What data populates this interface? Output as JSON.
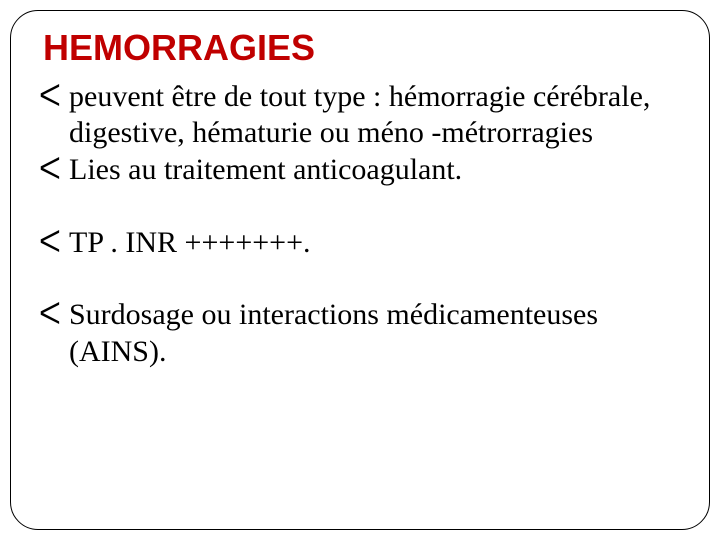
{
  "slide": {
    "title": "HEMORRAGIES",
    "title_color": "#c00000",
    "title_font": "Arial",
    "title_fontsize": 36,
    "body_font": "Times New Roman",
    "body_fontsize": 30,
    "body_color": "#000000",
    "border_color": "#000000",
    "border_radius": 28,
    "background_color": "#ffffff",
    "bullet_glyph": "᐀",
    "bullets": [
      "peuvent être de tout type : hémorragie cérébrale, digestive, hématurie ou méno -métrorragies",
      "Lies au traitement anticoagulant.",
      "TP . INR +++++++.",
      "Surdosage  ou interactions médicamenteuses (AINS)."
    ]
  }
}
